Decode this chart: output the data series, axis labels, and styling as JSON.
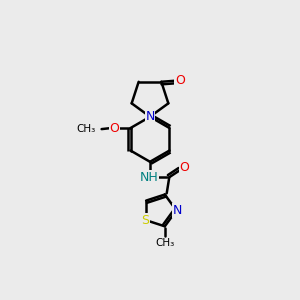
{
  "background_color": "#ebebeb",
  "bond_color": "#000000",
  "lw": 1.8,
  "colors": {
    "N": "#0000cc",
    "O": "#ee0000",
    "S": "#cccc00",
    "NH": "#008080",
    "C": "#000000"
  },
  "xlim": [
    0,
    10
  ],
  "ylim": [
    0,
    14
  ]
}
